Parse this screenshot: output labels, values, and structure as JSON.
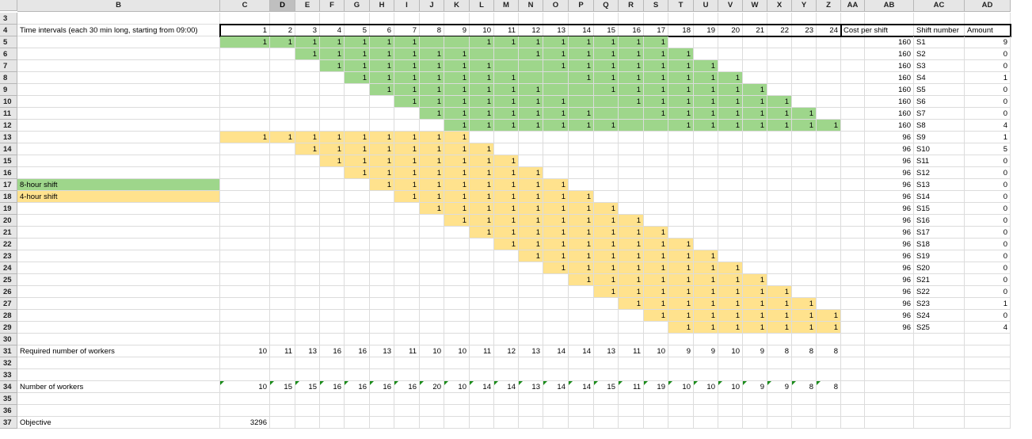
{
  "columns": [
    "B",
    "C",
    "D",
    "E",
    "F",
    "G",
    "H",
    "I",
    "J",
    "K",
    "L",
    "M",
    "N",
    "O",
    "P",
    "Q",
    "R",
    "S",
    "T",
    "U",
    "V",
    "W",
    "X",
    "Y",
    "Z",
    "AA",
    "AB",
    "AC",
    "AD"
  ],
  "selected_column": "D",
  "row_numbers": [
    "3",
    "4",
    "5",
    "6",
    "7",
    "8",
    "9",
    "10",
    "11",
    "12",
    "13",
    "14",
    "15",
    "16",
    "17",
    "18",
    "19",
    "20",
    "21",
    "22",
    "23",
    "24",
    "25",
    "26",
    "27",
    "28",
    "29",
    "30",
    "31",
    "32",
    "33",
    "34",
    "35",
    "36",
    "37"
  ],
  "header_row": {
    "label": "Time intervals (each 30 min long, starting from 09:00)",
    "intervals": [
      "1",
      "2",
      "3",
      "4",
      "5",
      "6",
      "7",
      "8",
      "9",
      "10",
      "11",
      "12",
      "13",
      "14",
      "15",
      "16",
      "17",
      "18",
      "19",
      "20",
      "21",
      "22",
      "23",
      "24"
    ],
    "cost_label": "Cost per shift",
    "shift_label": "Shift number",
    "amount_label": "Amount"
  },
  "legend": {
    "eight_hour": "8-hour shift",
    "four_hour": "4-hour shift"
  },
  "colors": {
    "eight_hour": "#9ed68b",
    "four_hour": "#ffe28d",
    "note_marker": "#1a8c1a"
  },
  "shift_pattern_value": "1",
  "shifts": [
    {
      "name": "S1",
      "cost": "160",
      "amount": "9",
      "type": "8",
      "start": 1,
      "len": 17,
      "gaps": [
        8,
        9
      ]
    },
    {
      "name": "S2",
      "cost": "160",
      "amount": "0",
      "type": "8",
      "start": 3,
      "len": 16,
      "gaps": [
        10,
        11
      ]
    },
    {
      "name": "S3",
      "cost": "160",
      "amount": "0",
      "type": "8",
      "start": 4,
      "len": 16,
      "gaps": [
        11,
        12
      ]
    },
    {
      "name": "S4",
      "cost": "160",
      "amount": "1",
      "type": "8",
      "start": 5,
      "len": 16,
      "gaps": [
        12,
        13
      ]
    },
    {
      "name": "S5",
      "cost": "160",
      "amount": "0",
      "type": "8",
      "start": 6,
      "len": 16,
      "gaps": [
        13,
        14
      ]
    },
    {
      "name": "S6",
      "cost": "160",
      "amount": "0",
      "type": "8",
      "start": 7,
      "len": 16,
      "gaps": [
        14,
        15
      ]
    },
    {
      "name": "S7",
      "cost": "160",
      "amount": "0",
      "type": "8",
      "start": 8,
      "len": 16,
      "gaps": [
        15,
        16
      ]
    },
    {
      "name": "S8",
      "cost": "160",
      "amount": "4",
      "type": "8",
      "start": 9,
      "len": 16,
      "gaps": [
        16,
        17
      ]
    },
    {
      "name": "S9",
      "cost": "96",
      "amount": "1",
      "type": "4",
      "start": 1,
      "len": 9,
      "gaps": []
    },
    {
      "name": "S10",
      "cost": "96",
      "amount": "5",
      "type": "4",
      "start": 3,
      "len": 8,
      "gaps": []
    },
    {
      "name": "S11",
      "cost": "96",
      "amount": "0",
      "type": "4",
      "start": 4,
      "len": 8,
      "gaps": []
    },
    {
      "name": "S12",
      "cost": "96",
      "amount": "0",
      "type": "4",
      "start": 5,
      "len": 8,
      "gaps": []
    },
    {
      "name": "S13",
      "cost": "96",
      "amount": "0",
      "type": "4",
      "start": 6,
      "len": 8,
      "gaps": []
    },
    {
      "name": "S14",
      "cost": "96",
      "amount": "0",
      "type": "4",
      "start": 7,
      "len": 8,
      "gaps": []
    },
    {
      "name": "S15",
      "cost": "96",
      "amount": "0",
      "type": "4",
      "start": 8,
      "len": 8,
      "gaps": []
    },
    {
      "name": "S16",
      "cost": "96",
      "amount": "0",
      "type": "4",
      "start": 9,
      "len": 8,
      "gaps": []
    },
    {
      "name": "S17",
      "cost": "96",
      "amount": "0",
      "type": "4",
      "start": 10,
      "len": 8,
      "gaps": []
    },
    {
      "name": "S18",
      "cost": "96",
      "amount": "0",
      "type": "4",
      "start": 11,
      "len": 8,
      "gaps": []
    },
    {
      "name": "S19",
      "cost": "96",
      "amount": "0",
      "type": "4",
      "start": 12,
      "len": 8,
      "gaps": []
    },
    {
      "name": "S20",
      "cost": "96",
      "amount": "0",
      "type": "4",
      "start": 13,
      "len": 8,
      "gaps": []
    },
    {
      "name": "S21",
      "cost": "96",
      "amount": "0",
      "type": "4",
      "start": 14,
      "len": 8,
      "gaps": []
    },
    {
      "name": "S22",
      "cost": "96",
      "amount": "0",
      "type": "4",
      "start": 15,
      "len": 8,
      "gaps": []
    },
    {
      "name": "S23",
      "cost": "96",
      "amount": "1",
      "type": "4",
      "start": 16,
      "len": 8,
      "gaps": []
    },
    {
      "name": "S24",
      "cost": "96",
      "amount": "0",
      "type": "4",
      "start": 17,
      "len": 8,
      "gaps": []
    },
    {
      "name": "S25",
      "cost": "96",
      "amount": "4",
      "type": "4",
      "start": 18,
      "len": 8,
      "gaps": []
    }
  ],
  "required": {
    "label": "Required number of workers",
    "values": [
      "10",
      "11",
      "13",
      "16",
      "16",
      "13",
      "11",
      "10",
      "10",
      "11",
      "12",
      "13",
      "14",
      "14",
      "13",
      "11",
      "10",
      "9",
      "9",
      "10",
      "9",
      "8",
      "8",
      "8"
    ]
  },
  "workers": {
    "label": "Number of workers",
    "values": [
      "10",
      "15",
      "15",
      "16",
      "16",
      "16",
      "16",
      "20",
      "10",
      "14",
      "14",
      "13",
      "14",
      "14",
      "15",
      "11",
      "19",
      "10",
      "10",
      "10",
      "9",
      "9",
      "8",
      "8"
    ]
  },
  "objective": {
    "label": "Objective",
    "value": "3296"
  }
}
